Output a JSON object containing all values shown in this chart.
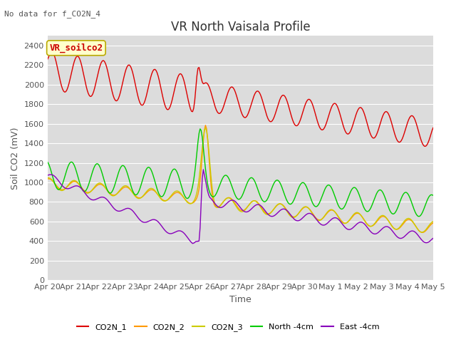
{
  "title": "VR North Vaisala Profile",
  "subtitle": "No data for f_CO2N_4",
  "xlabel": "Time",
  "ylabel": "Soil CO2 (mV)",
  "box_label": "VR_soilco2",
  "ylim": [
    0,
    2500
  ],
  "yticks": [
    0,
    200,
    400,
    600,
    800,
    1000,
    1200,
    1400,
    1600,
    1800,
    2000,
    2200,
    2400
  ],
  "x_tick_labels": [
    "Apr 20",
    "Apr 21",
    "Apr 22",
    "Apr 23",
    "Apr 24",
    "Apr 25",
    "Apr 26",
    "Apr 27",
    "Apr 28",
    "Apr 29",
    "Apr 30",
    "May 1",
    "May 2",
    "May 3",
    "May 4",
    "May 5"
  ],
  "bg_color": "#e8e8e8",
  "plot_bg": "#dcdcdc",
  "series_colors": {
    "CO2N_1": "#dd0000",
    "CO2N_2": "#ff9900",
    "CO2N_3": "#cccc00",
    "North_4cm": "#00cc00",
    "East_4cm": "#8800bb"
  },
  "legend_labels": [
    "CO2N_1",
    "CO2N_2",
    "CO2N_3",
    "North -4cm",
    "East -4cm"
  ],
  "legend_colors": [
    "#dd0000",
    "#ff9900",
    "#cccc00",
    "#00cc00",
    "#8800bb"
  ],
  "title_fontsize": 12,
  "axis_label_fontsize": 9,
  "tick_fontsize": 8
}
